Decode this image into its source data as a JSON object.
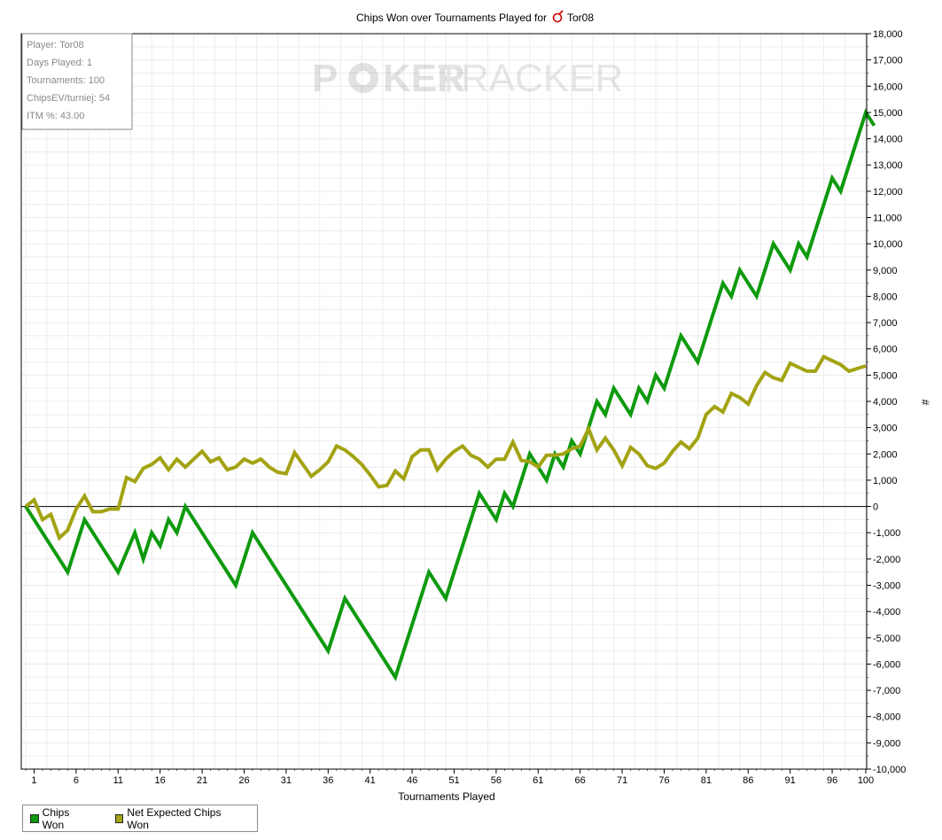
{
  "info_box": {
    "player": "Player: Tor08",
    "days": "Days Played: 1",
    "tournaments": "Tournaments: 100",
    "chipsev": "ChipsEV/turniej: 54",
    "itm": "ITM %: 43.00"
  },
  "watermark": {
    "left": "P",
    "mid": "KER",
    "right": "TRACKER"
  },
  "colors": {
    "chips_won": "#0e9a0e",
    "net_expected": "#a3a313",
    "grid": "#ececec",
    "axis": "#000000"
  },
  "chart_data": {
    "type": "line",
    "title": "Chips Won over Tournaments Played for",
    "title_player": "Tor08",
    "title_icon": "pokerstars-icon",
    "xlabel": "Tournaments Played",
    "ylabel": "#",
    "xlim": [
      0,
      100
    ],
    "ylim": [
      -10000,
      18000
    ],
    "xticks": [
      1,
      6,
      11,
      16,
      21,
      26,
      31,
      36,
      41,
      46,
      51,
      56,
      61,
      66,
      71,
      76,
      81,
      86,
      91,
      96,
      100
    ],
    "yticks": [
      18000,
      17000,
      16000,
      15000,
      14000,
      13000,
      12000,
      11000,
      10000,
      9000,
      8000,
      7000,
      6000,
      5000,
      4000,
      3000,
      2000,
      1000,
      0,
      -1000,
      -2000,
      -3000,
      -4000,
      -5000,
      -6000,
      -7000,
      -8000,
      -9000,
      -10000
    ],
    "ytick_labels": [
      "18,000",
      "17,000",
      "16,000",
      "15,000",
      "14,000",
      "13,000",
      "12,000",
      "11,000",
      "10,000",
      "9,000",
      "8,000",
      "7,000",
      "6,000",
      "5,000",
      "4,000",
      "3,000",
      "2,000",
      "1,000",
      "0",
      "-1,000",
      "-2,000",
      "-3,000",
      "-4,000",
      "-5,000",
      "-6,000",
      "-7,000",
      "-8,000",
      "-9,000",
      "-10,000"
    ],
    "grid": true,
    "legend_position": "bottom-left",
    "series": [
      {
        "name": "Chips Won",
        "color": "#0e9a0e",
        "points": [
          [
            0,
            0
          ],
          [
            5,
            -2500
          ],
          [
            7,
            -500
          ],
          [
            11,
            -2500
          ],
          [
            13,
            -1000
          ],
          [
            14,
            -2000
          ],
          [
            15,
            -1000
          ],
          [
            16,
            -1500
          ],
          [
            17,
            -500
          ],
          [
            18,
            -1000
          ],
          [
            19,
            0
          ],
          [
            25,
            -3000
          ],
          [
            27,
            -1000
          ],
          [
            36,
            -5500
          ],
          [
            38,
            -3500
          ],
          [
            44,
            -6500
          ],
          [
            48,
            -2500
          ],
          [
            50,
            -3500
          ],
          [
            54,
            500
          ],
          [
            56,
            -500
          ],
          [
            57,
            500
          ],
          [
            58,
            0
          ],
          [
            60,
            2000
          ],
          [
            62,
            1000
          ],
          [
            63,
            2000
          ],
          [
            64,
            1500
          ],
          [
            65,
            2500
          ],
          [
            66,
            2000
          ],
          [
            68,
            4000
          ],
          [
            69,
            3500
          ],
          [
            70,
            4500
          ],
          [
            72,
            3500
          ],
          [
            73,
            4500
          ],
          [
            74,
            4000
          ],
          [
            75,
            5000
          ],
          [
            76,
            4500
          ],
          [
            78,
            6500
          ],
          [
            80,
            5500
          ],
          [
            83,
            8500
          ],
          [
            84,
            8000
          ],
          [
            85,
            9000
          ],
          [
            87,
            8000
          ],
          [
            89,
            10000
          ],
          [
            91,
            9000
          ],
          [
            92,
            10000
          ],
          [
            93,
            9500
          ],
          [
            96,
            12500
          ],
          [
            97,
            12000
          ],
          [
            100,
            15000
          ],
          [
            101,
            14500
          ]
        ]
      },
      {
        "name": "Net Expected Chips Won",
        "color": "#a3a313",
        "points": [
          [
            0,
            0
          ],
          [
            1,
            250
          ],
          [
            2,
            -500
          ],
          [
            3,
            -300
          ],
          [
            4,
            -1200
          ],
          [
            5,
            -900
          ],
          [
            6,
            -100
          ],
          [
            7,
            400
          ],
          [
            8,
            -200
          ],
          [
            9,
            -200
          ],
          [
            10,
            -100
          ],
          [
            11,
            -100
          ],
          [
            12,
            1100
          ],
          [
            13,
            950
          ],
          [
            14,
            1450
          ],
          [
            15,
            1600
          ],
          [
            16,
            1850
          ],
          [
            17,
            1400
          ],
          [
            18,
            1800
          ],
          [
            19,
            1500
          ],
          [
            20,
            1800
          ],
          [
            21,
            2100
          ],
          [
            22,
            1700
          ],
          [
            23,
            1850
          ],
          [
            24,
            1400
          ],
          [
            25,
            1500
          ],
          [
            26,
            1800
          ],
          [
            27,
            1650
          ],
          [
            28,
            1800
          ],
          [
            29,
            1500
          ],
          [
            30,
            1300
          ],
          [
            31,
            1250
          ],
          [
            32,
            2050
          ],
          [
            33,
            1600
          ],
          [
            34,
            1150
          ],
          [
            35,
            1400
          ],
          [
            36,
            1700
          ],
          [
            37,
            2300
          ],
          [
            38,
            2150
          ],
          [
            39,
            1900
          ],
          [
            40,
            1600
          ],
          [
            41,
            1200
          ],
          [
            42,
            750
          ],
          [
            43,
            800
          ],
          [
            44,
            1350
          ],
          [
            45,
            1050
          ],
          [
            46,
            1900
          ],
          [
            47,
            2150
          ],
          [
            48,
            2150
          ],
          [
            49,
            1400
          ],
          [
            50,
            1800
          ],
          [
            51,
            2100
          ],
          [
            52,
            2300
          ],
          [
            53,
            1950
          ],
          [
            54,
            1800
          ],
          [
            55,
            1500
          ],
          [
            56,
            1800
          ],
          [
            57,
            1800
          ],
          [
            58,
            2450
          ],
          [
            59,
            1750
          ],
          [
            60,
            1700
          ],
          [
            61,
            1500
          ],
          [
            62,
            1950
          ],
          [
            63,
            1950
          ],
          [
            64,
            2000
          ],
          [
            65,
            2200
          ],
          [
            66,
            2300
          ],
          [
            67,
            2950
          ],
          [
            68,
            2150
          ],
          [
            69,
            2600
          ],
          [
            70,
            2150
          ],
          [
            71,
            1550
          ],
          [
            72,
            2250
          ],
          [
            73,
            2000
          ],
          [
            74,
            1550
          ],
          [
            75,
            1450
          ],
          [
            76,
            1650
          ],
          [
            77,
            2100
          ],
          [
            78,
            2450
          ],
          [
            79,
            2200
          ],
          [
            80,
            2600
          ],
          [
            81,
            3500
          ],
          [
            82,
            3800
          ],
          [
            83,
            3600
          ],
          [
            84,
            4300
          ],
          [
            85,
            4150
          ],
          [
            86,
            3900
          ],
          [
            87,
            4600
          ],
          [
            88,
            5100
          ],
          [
            89,
            4900
          ],
          [
            90,
            4800
          ],
          [
            91,
            5450
          ],
          [
            92,
            5300
          ],
          [
            93,
            5150
          ],
          [
            94,
            5150
          ],
          [
            95,
            5700
          ],
          [
            96,
            5550
          ],
          [
            97,
            5400
          ],
          [
            98,
            5150
          ],
          [
            99,
            5250
          ],
          [
            100,
            5350
          ]
        ]
      }
    ]
  }
}
